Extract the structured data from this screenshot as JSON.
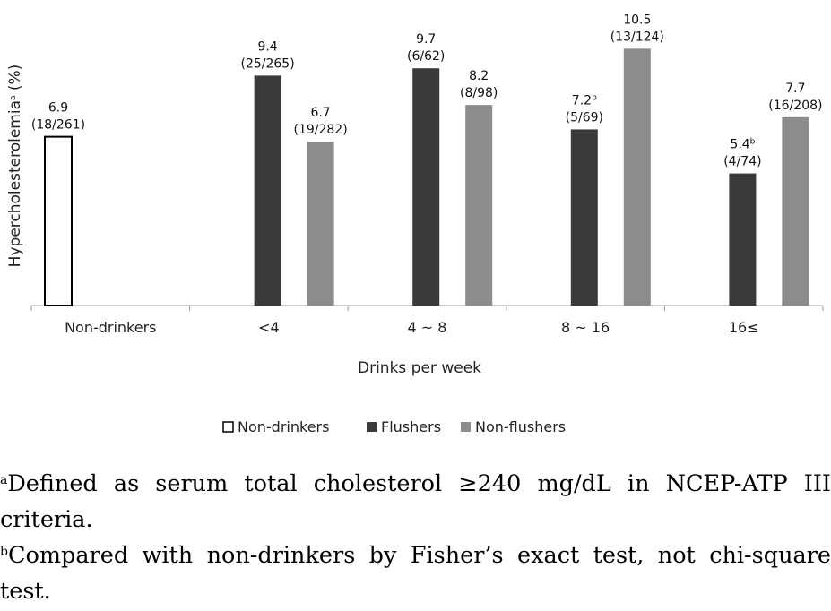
{
  "chart_data": {
    "type": "bar",
    "title": "",
    "ylabel": "Hypercholesterolemia",
    "ylabel_sup": "a",
    "ylabel_unit": " (%)",
    "xlabel": "Drinks per week",
    "ylim": [
      0,
      11.1
    ],
    "categories": [
      "Non-drinkers",
      "<4",
      "4 ~ 8",
      "8 ~ 16",
      "16≤"
    ],
    "series": [
      {
        "name": "Non-drinkers",
        "color": "#ffffff",
        "stroke": "#000000",
        "points": [
          {
            "category": "Non-drinkers",
            "value": 6.9,
            "label": "6.9",
            "sup": "",
            "count": "(18/261)"
          }
        ]
      },
      {
        "name": "Flushers",
        "color": "#3a3a3a",
        "points": [
          {
            "category": "<4",
            "value": 9.4,
            "label": "9.4",
            "sup": "",
            "count": "(25/265)"
          },
          {
            "category": "4 ~ 8",
            "value": 9.7,
            "label": "9.7",
            "sup": "",
            "count": "(6/62)"
          },
          {
            "category": "8 ~ 16",
            "value": 7.2,
            "label": "7.2",
            "sup": "b",
            "count": "(5/69)"
          },
          {
            "category": "16≤",
            "value": 5.4,
            "label": "5.4",
            "sup": "b",
            "count": "(4/74)"
          }
        ]
      },
      {
        "name": "Non-flushers",
        "color": "#8c8c8c",
        "points": [
          {
            "category": "<4",
            "value": 6.7,
            "label": "6.7",
            "sup": "",
            "count": "(19/282)"
          },
          {
            "category": "4 ~ 8",
            "value": 8.2,
            "label": "8.2",
            "sup": "",
            "count": "(8/98)"
          },
          {
            "category": "8 ~ 16",
            "value": 10.5,
            "label": "10.5",
            "sup": "",
            "count": "(13/124)"
          },
          {
            "category": "16≤",
            "value": 7.7,
            "label": "7.7",
            "sup": "",
            "count": "(16/208)"
          }
        ]
      }
    ],
    "legend_position": "bottom",
    "grid": false
  },
  "footnotes": [
    {
      "mark": "a",
      "text": "Defined as serum total cholesterol ≥240 mg/dL in NCEP-ATP III criteria."
    },
    {
      "mark": "b",
      "text": "Compared with non-drinkers by Fisher’s exact test, not chi-square test."
    }
  ]
}
